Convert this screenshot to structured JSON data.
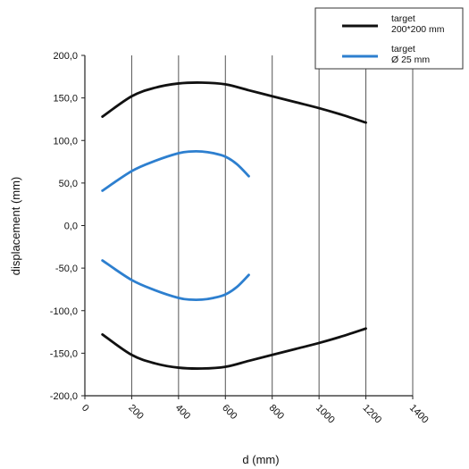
{
  "chart_data": {
    "type": "line",
    "xlabel": "d (mm)",
    "ylabel": "displacement (mm)",
    "xlim": [
      0,
      1400
    ],
    "ylim": [
      -200,
      200
    ],
    "x_ticks": [
      0,
      200,
      400,
      600,
      800,
      1000,
      1200,
      1400
    ],
    "y_ticks": [
      200,
      150,
      100,
      50,
      0,
      -50,
      -100,
      -150,
      -200
    ],
    "y_tick_labels": [
      "200,0",
      "150,0",
      "100,0",
      "50,0",
      "0,0",
      "-50,0",
      "-100,0",
      "-150,0",
      "-200,0"
    ],
    "grid": "vertical",
    "legend_position": "top-right",
    "series": [
      {
        "name": "target 200*200 mm",
        "legend_lines": [
          "target",
          "200*200 mm"
        ],
        "color": "#111111",
        "x": [
          75,
          200,
          300,
          400,
          500,
          600,
          700,
          800,
          900,
          1000,
          1100,
          1200
        ],
        "y": [
          128,
          152,
          162,
          167,
          168,
          166,
          159,
          152,
          145,
          138,
          130,
          121
        ]
      },
      {
        "name": "target 200*200 mm (lower)",
        "color": "#111111",
        "x": [
          75,
          200,
          300,
          400,
          500,
          600,
          700,
          800,
          900,
          1000,
          1100,
          1200
        ],
        "y": [
          -128,
          -152,
          -162,
          -167,
          -168,
          -166,
          -159,
          -152,
          -145,
          -138,
          -130,
          -121
        ]
      },
      {
        "name": "target Ø 25 mm",
        "legend_lines": [
          "target",
          "Ø 25 mm"
        ],
        "color": "#2d7fcf",
        "x": [
          75,
          200,
          300,
          400,
          450,
          500,
          550,
          600,
          650,
          700
        ],
        "y": [
          41,
          64,
          76,
          85,
          87,
          87,
          85,
          81,
          72,
          58
        ]
      },
      {
        "name": "target Ø 25 mm (lower)",
        "color": "#2d7fcf",
        "x": [
          75,
          200,
          300,
          400,
          450,
          500,
          550,
          600,
          650,
          700
        ],
        "y": [
          -41,
          -64,
          -76,
          -85,
          -87,
          -87,
          -85,
          -81,
          -72,
          -58
        ]
      }
    ]
  }
}
